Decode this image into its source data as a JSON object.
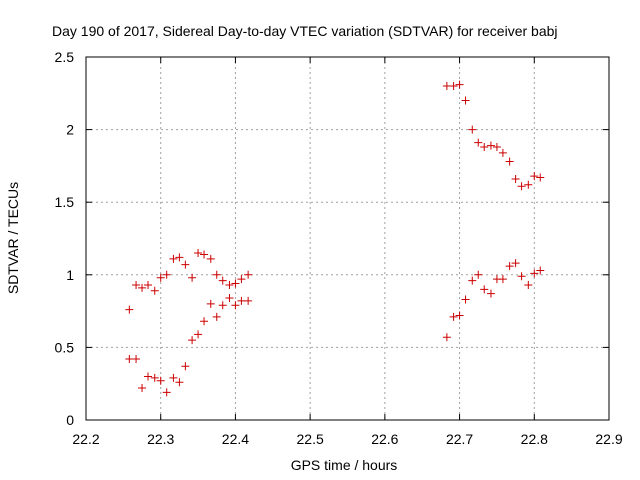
{
  "chart_data": {
    "type": "scatter",
    "title": "Day 190 of 2017, Sidereal Day-to-day VTEC variation (SDTVAR) for receiver babj",
    "xlabel": "GPS time / hours",
    "ylabel": "SDTVAR / TECUs",
    "xlim": [
      22.2,
      22.9
    ],
    "ylim": [
      0,
      2.5
    ],
    "xticks": [
      "22.2",
      "22.3",
      "22.4",
      "22.5",
      "22.6",
      "22.7",
      "22.8",
      "22.9"
    ],
    "yticks": [
      "0",
      "0.5",
      "1",
      "1.5",
      "2",
      "2.5"
    ],
    "grid": true,
    "marker": "+",
    "color": "#cc0000",
    "series": [
      {
        "name": "SDTVAR",
        "x": [
          22.258,
          22.267,
          22.275,
          22.283,
          22.292,
          22.3,
          22.308,
          22.317,
          22.325,
          22.333,
          22.342,
          22.35,
          22.358,
          22.367,
          22.375,
          22.383,
          22.392,
          22.4,
          22.408,
          22.417,
          22.258,
          22.267,
          22.275,
          22.283,
          22.292,
          22.3,
          22.308,
          22.317,
          22.325,
          22.333,
          22.342,
          22.35,
          22.358,
          22.367,
          22.375,
          22.383,
          22.392,
          22.4,
          22.408,
          22.417,
          22.683,
          22.692,
          22.7,
          22.708,
          22.717,
          22.725,
          22.733,
          22.742,
          22.75,
          22.758,
          22.767,
          22.775,
          22.783,
          22.792,
          22.8,
          22.808,
          22.683,
          22.692,
          22.7,
          22.708,
          22.717,
          22.725,
          22.733,
          22.742,
          22.75,
          22.758,
          22.767,
          22.775,
          22.783,
          22.792,
          22.8,
          22.808
        ],
        "y": [
          0.76,
          0.93,
          0.91,
          0.93,
          0.89,
          0.98,
          1.0,
          1.11,
          1.12,
          1.07,
          0.98,
          1.15,
          1.14,
          1.11,
          1.0,
          0.96,
          0.93,
          0.94,
          0.97,
          1.0,
          0.42,
          0.42,
          0.22,
          0.3,
          0.29,
          0.27,
          0.19,
          0.29,
          0.26,
          0.37,
          0.55,
          0.59,
          0.68,
          0.8,
          0.71,
          0.79,
          0.84,
          0.79,
          0.82,
          0.82,
          2.3,
          2.3,
          2.31,
          2.2,
          2.0,
          1.91,
          1.88,
          1.89,
          1.88,
          1.84,
          1.78,
          1.66,
          1.61,
          1.62,
          1.68,
          1.67,
          0.57,
          0.71,
          0.72,
          0.83,
          0.96,
          1.0,
          0.9,
          0.87,
          0.97,
          0.97,
          1.06,
          1.08,
          0.99,
          0.93,
          1.01,
          1.03
        ]
      }
    ]
  }
}
